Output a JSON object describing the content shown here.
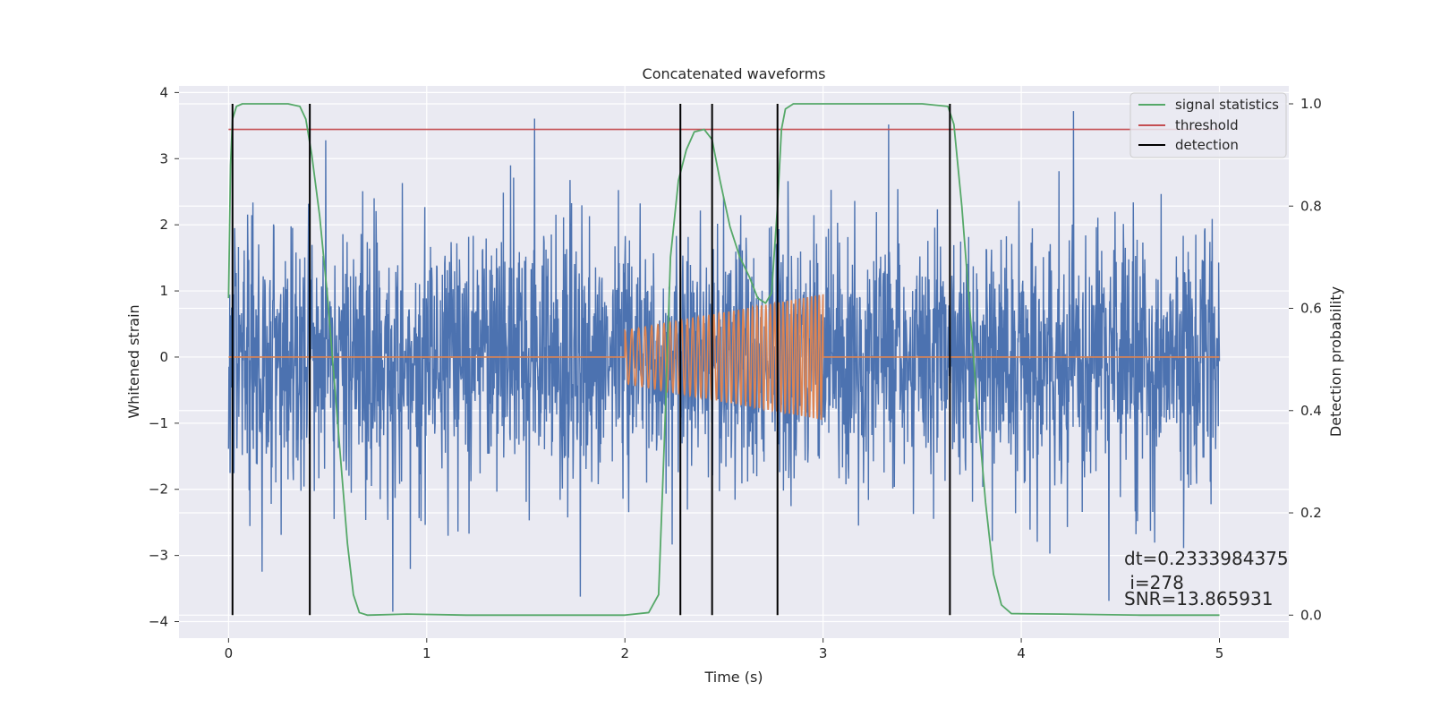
{
  "chart_data": {
    "type": "line",
    "title": "Concatenated waveforms",
    "xlabel": "Time (s)",
    "ylabel": "Whitened strain",
    "y2label": "Detection probability",
    "xlim": [
      -0.25,
      5.35
    ],
    "ylim": [
      -4.25,
      4.1
    ],
    "y2lim": [
      -0.045,
      1.035
    ],
    "xticks": [
      0,
      1,
      2,
      3,
      4,
      5
    ],
    "yticks": [
      -4,
      -3,
      -2,
      -1,
      0,
      1,
      2,
      3,
      4
    ],
    "y2ticks": [
      0.0,
      0.2,
      0.4,
      0.6,
      0.8,
      1.0
    ],
    "grid": true,
    "legend_position": "top-right",
    "colors": {
      "strain": "#4c72b0",
      "injection": "#dd8452",
      "statistic": "#55a868",
      "threshold": "#c44e52",
      "detection": "#000000",
      "background": "#eaeaf2",
      "grid": "#ffffff"
    },
    "series": [
      {
        "name": "",
        "kind": "noise",
        "axis": "left",
        "x_range": [
          0,
          5
        ],
        "std": 0.95,
        "max": 3.72,
        "min": -3.85,
        "color_key": "strain"
      },
      {
        "name": "",
        "kind": "chirp",
        "axis": "left",
        "x_range": [
          2,
          3
        ],
        "amplitude_start": 0.4,
        "amplitude_end": 0.95,
        "color_key": "injection"
      },
      {
        "name": "signal statistics",
        "axis": "right",
        "color_key": "statistic",
        "x": [
          0.0,
          0.01,
          0.02,
          0.04,
          0.07,
          0.1,
          0.3,
          0.36,
          0.39,
          0.42,
          0.46,
          0.5,
          0.55,
          0.6,
          0.63,
          0.66,
          0.7,
          0.9,
          1.2,
          1.6,
          2.0,
          2.12,
          2.17,
          2.2,
          2.23,
          2.27,
          2.31,
          2.35,
          2.4,
          2.44,
          2.48,
          2.53,
          2.58,
          2.63,
          2.67,
          2.71,
          2.74,
          2.77,
          2.79,
          2.81,
          2.85,
          2.9,
          3.2,
          3.5,
          3.63,
          3.66,
          3.7,
          3.74,
          3.78,
          3.82,
          3.86,
          3.9,
          3.95,
          4.2,
          4.6,
          5.0
        ],
        "values": [
          0.62,
          0.88,
          0.97,
          0.995,
          1.0,
          1.0,
          1.0,
          0.995,
          0.97,
          0.9,
          0.78,
          0.62,
          0.38,
          0.14,
          0.04,
          0.005,
          0.0,
          0.002,
          0.0,
          0.0,
          0.0,
          0.005,
          0.04,
          0.35,
          0.7,
          0.85,
          0.91,
          0.945,
          0.95,
          0.93,
          0.85,
          0.76,
          0.7,
          0.66,
          0.62,
          0.61,
          0.63,
          0.8,
          0.95,
          0.99,
          1.0,
          1.0,
          1.0,
          1.0,
          0.995,
          0.96,
          0.8,
          0.6,
          0.4,
          0.22,
          0.08,
          0.02,
          0.003,
          0.002,
          0.0,
          0.0
        ]
      },
      {
        "name": "threshold",
        "axis": "right",
        "color_key": "threshold",
        "x": [
          0,
          5
        ],
        "values": [
          0.95,
          0.95
        ]
      },
      {
        "name": "detection",
        "axis": "right",
        "color_key": "detection",
        "kind": "vlines",
        "x": [
          0.02,
          0.41,
          2.28,
          2.44,
          2.77,
          3.64
        ],
        "ymin": 0.0,
        "ymax": 1.0
      }
    ],
    "annotations": [
      "dt=0.2333984375",
      " i=278",
      "SNR=13.865931"
    ]
  }
}
